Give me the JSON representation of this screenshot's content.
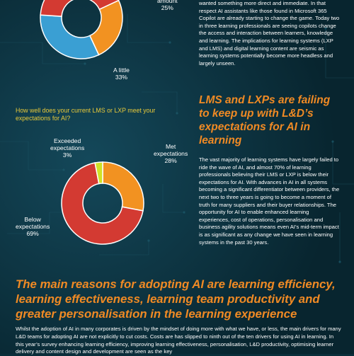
{
  "colors": {
    "background": "#0a2e3a",
    "accent_orange": "#f08a24",
    "question_yellow": "#e8c93a",
    "donut_red": "#d33a32",
    "donut_orange": "#f29221",
    "donut_blue": "#3a9fd3",
    "donut_green": "#cfe227"
  },
  "chart_data": [
    {
      "type": "pie",
      "title": "",
      "slices": [
        {
          "label": "A little",
          "value": 33,
          "color": "#3a9fd3"
        },
        {
          "label": "amount",
          "value": 25,
          "color": "#f29221"
        },
        {
          "label": "",
          "value": 42,
          "color": "#d33a32"
        }
      ]
    },
    {
      "type": "pie",
      "title": "How well does your current LMS or LXP meet your expectations for AI?",
      "slices": [
        {
          "label": "Met expectations",
          "value": 28,
          "color": "#f29221"
        },
        {
          "label": "Below expectations",
          "value": 69,
          "color": "#d33a32"
        },
        {
          "label": "Exceeded expectations",
          "value": 3,
          "color": "#cfe227"
        }
      ]
    }
  ],
  "chart1": {
    "amount_label": "amount",
    "amount_pct": "25%",
    "little_label": "A little",
    "little_pct": "33%"
  },
  "chart2": {
    "question": "How well does your current LMS or LXP meet your expectations for AI?",
    "exceeded_label_1": "Exceeded",
    "exceeded_label_2": "expectations",
    "exceeded_pct": "3%",
    "met_label_1": "Met",
    "met_label_2": "expectations",
    "met_pct": "28%",
    "below_label_1": "Below",
    "below_label_2": "expectations",
    "below_pct": "69%"
  },
  "intro_text": "wanted something more direct and immediate. In that respect AI assistants like those found in Microsoft 365 Copilot are already starting to change the game. Today two in three learning professionals are seeing copilots change the access and interaction between learners, knowledge and learning. The implications for learning systems (LXP and LMS) and digital learning content are seismic as learning systems potentially become more headless and largely unseen.",
  "section_heading": "LMS and LXPs are failing to keep up with L&D’s expectations for AI in learning",
  "lms_body": "The vast majority of learning systems have largely failed to ride the wave of AI, and almost 70% of learning professionals believing their LMS or LXP is below their expectations for AI. With advances in AI in all systems becoming a significant differentiator between providers, the next two to three years is going to become a moment of truth for many suppliers and their buyer relationships. The opportunity for AI to enable enhanced learning experiences, cost of operations, personalisation and business agility solutions means even AI’s mid-term impact is as significant as any change we have seen in learning systems in the past 30 years.",
  "main_heading": "The main reasons for adopting AI are learning efficiency, learning effectiveness, learning team productivity and greater personalisation in the learning experience",
  "bottom_text": "Whilst the adoption of AI in many corporates is driven by the mindset of doing more with what we have, or less, the main drivers for many L&D teams for adopting AI are not explicitly to cut costs. Costs are has slipped to ninth out of the ten drivers for using AI in learning. In this year’s survey enhancing learning efficiency, improving learning effectiveness, personalisation, L&D productivity, optimising learner delivery and content design and development are seen as the key"
}
